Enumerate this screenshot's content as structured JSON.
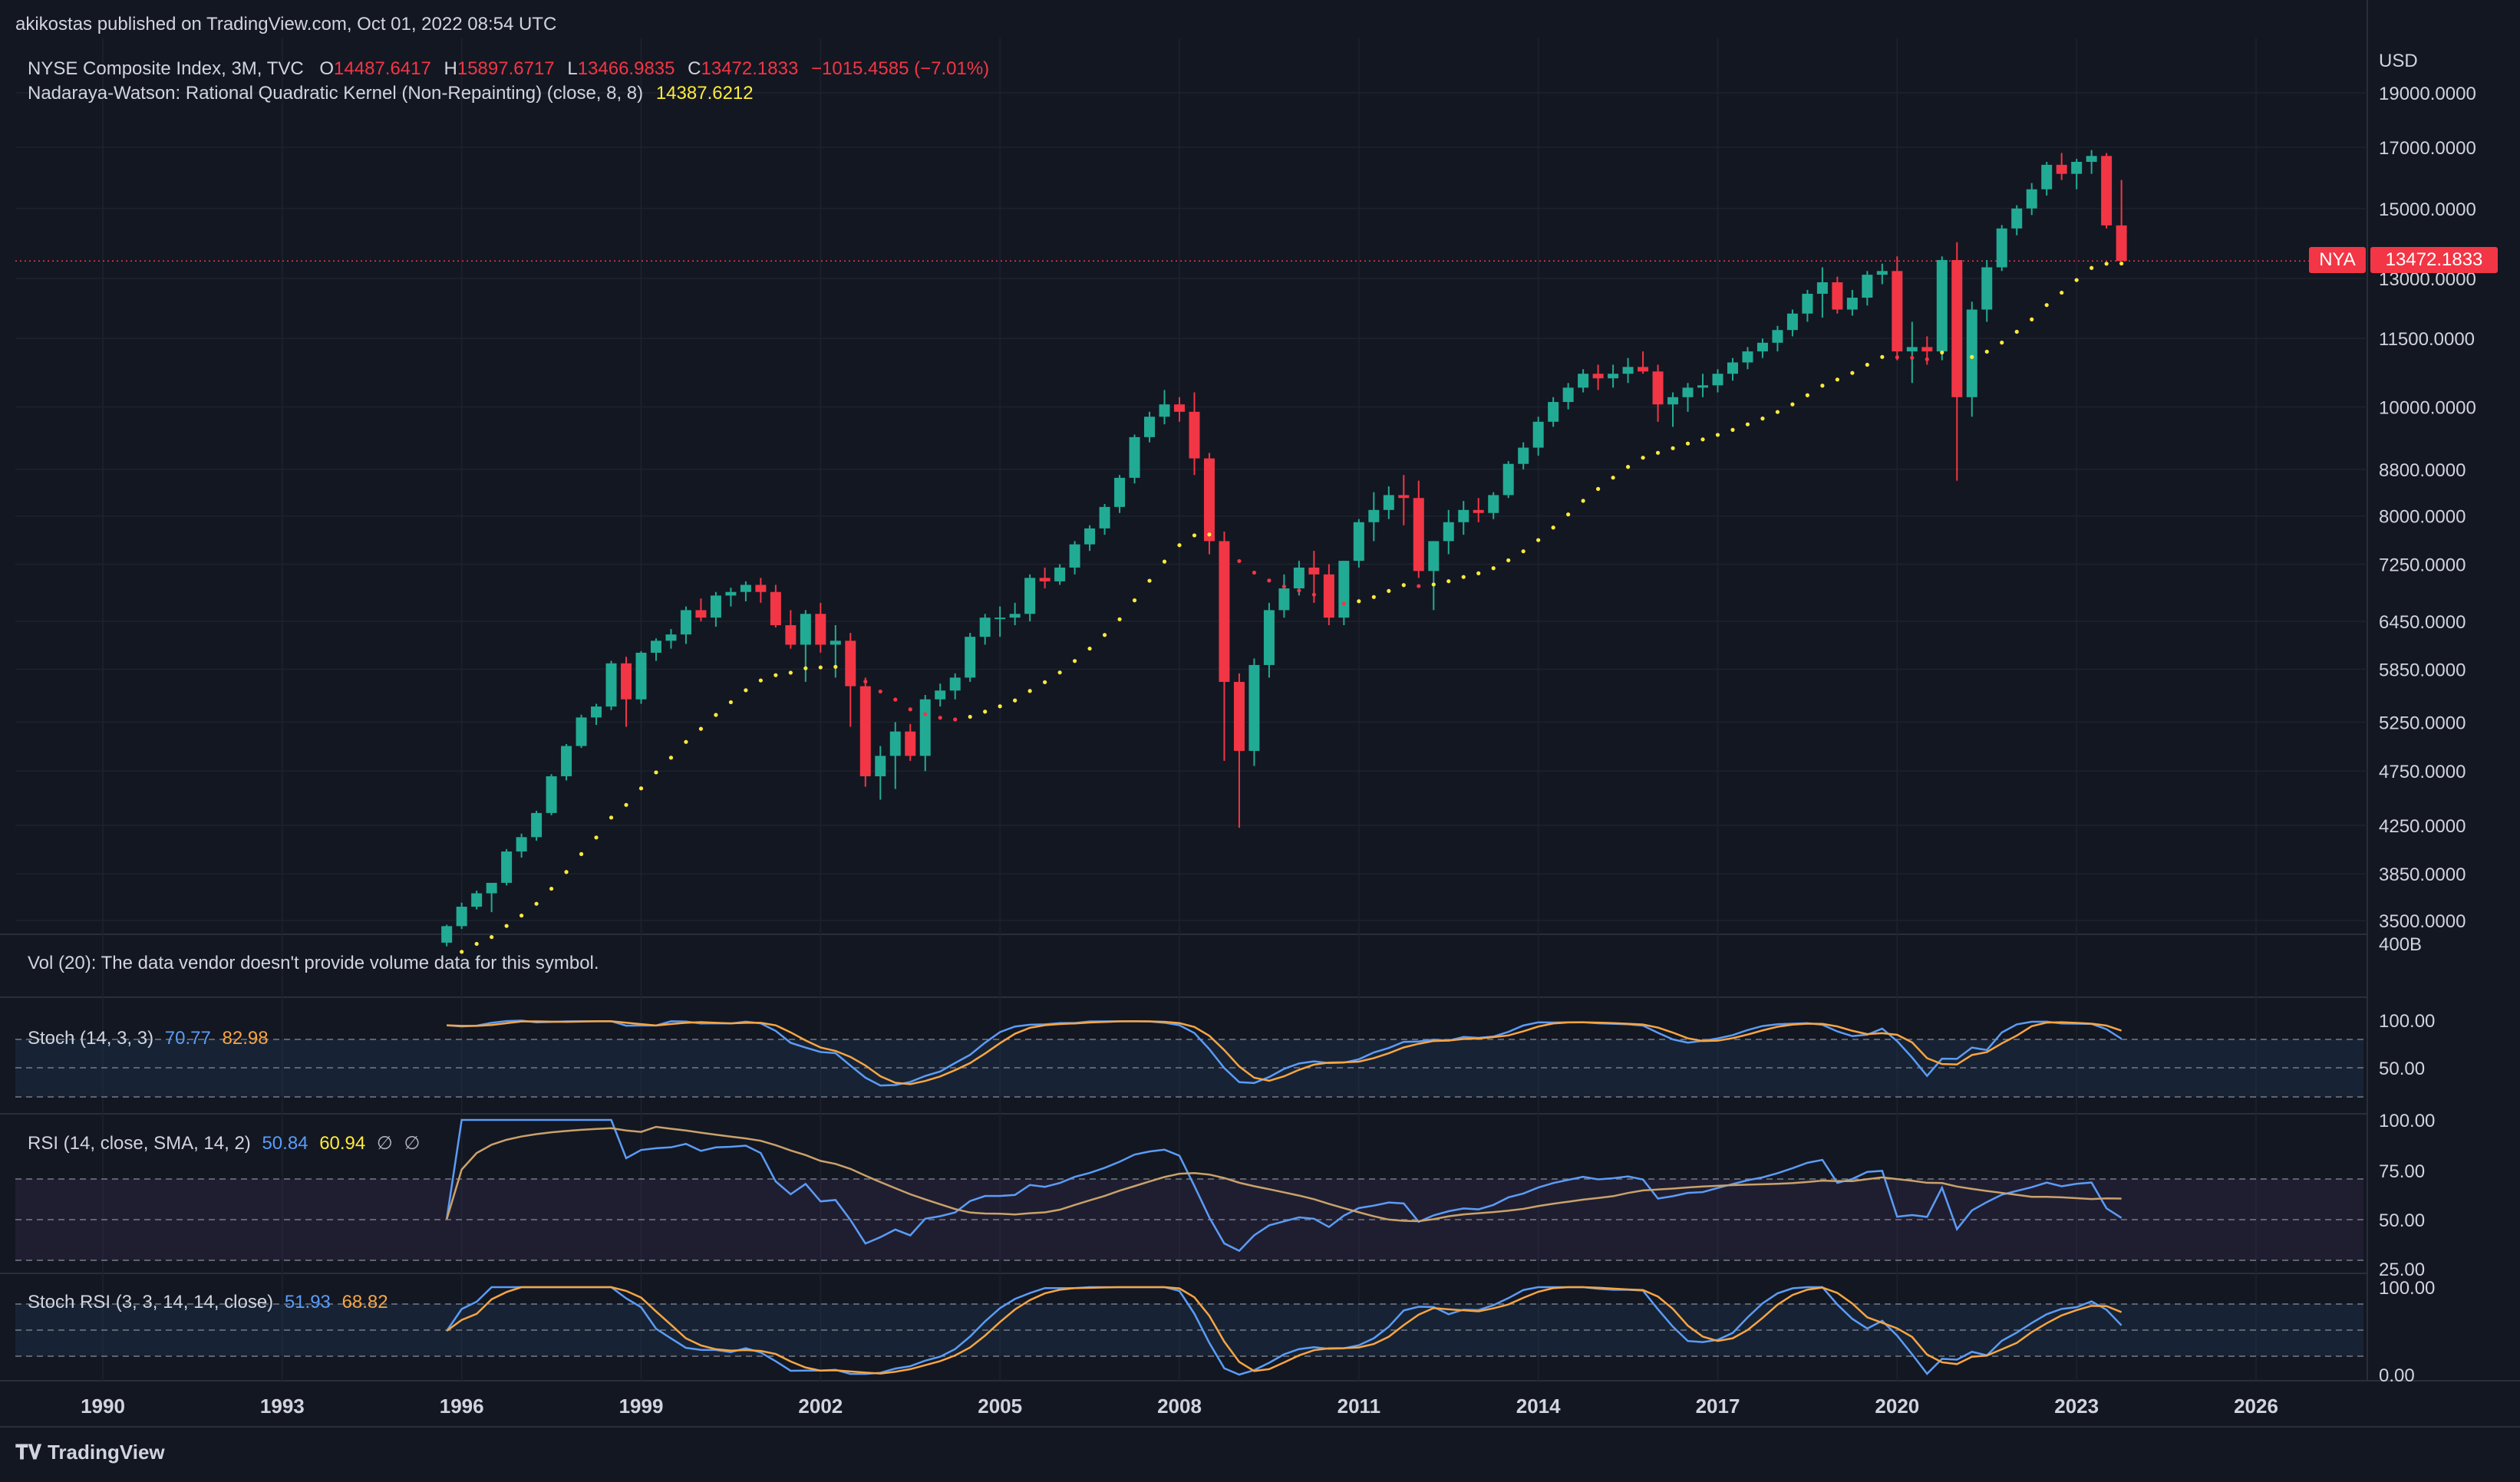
{
  "attribution": "akikostas published on TradingView.com, Oct 01, 2022 08:54 UTC",
  "currency": "USD",
  "symbol_line": {
    "name": "NYSE Composite Index, 3M, TVC",
    "o_label": "O",
    "o_value": "14487.6417",
    "h_label": "H",
    "h_value": "15897.6717",
    "l_label": "L",
    "l_value": "13466.9835",
    "c_label": "C",
    "c_value": "13472.1833",
    "change": "−1015.4585 (−7.01%)"
  },
  "nw_line": {
    "label": "Nadaraya-Watson: Rational Quadratic Kernel (Non-Repainting) (close, 8, 8)",
    "value": "14387.6212"
  },
  "last_price": {
    "symbol": "NYA",
    "value": "13472.1833"
  },
  "vol_line": "Vol (20): The data vendor doesn't provide volume data for this symbol.",
  "stoch_line": {
    "label": "Stoch (14, 3, 3)",
    "k": "70.77",
    "d": "82.98"
  },
  "rsi_line": {
    "label": "RSI (14, close, SMA, 14, 2)",
    "rsi": "50.84",
    "ma": "60.94",
    "na1": "∅",
    "na2": "∅"
  },
  "stochrsi_line": {
    "label": "Stoch RSI (3, 3, 14, 14, close)",
    "k": "51.93",
    "d": "68.82"
  },
  "footer": "TradingView",
  "colors": {
    "bg": "#131722",
    "up": "#22ab94",
    "down": "#f23645",
    "kernel": "#ffeb3b",
    "blue": "#5b9cf6",
    "orange": "#f7a543",
    "grid": "#1e222d"
  },
  "chart_data": {
    "type": "candlestick",
    "price_axis": {
      "labels": [
        "19000.0000",
        "17000.0000",
        "15000.0000",
        "13000.0000",
        "11500.0000",
        "10000.0000",
        "8800.0000",
        "8000.0000",
        "7250.0000",
        "6450.0000",
        "5850.0000",
        "5250.0000",
        "4750.0000",
        "4250.0000",
        "3850.0000",
        "3500.0000"
      ],
      "values": [
        19000,
        17000,
        15000,
        13000,
        11500,
        10000,
        8800,
        8000,
        7250,
        6450,
        5850,
        5250,
        4750,
        4250,
        3850,
        3500
      ],
      "scale": "log"
    },
    "vol_axis_label": "400B",
    "time_axis": [
      "1990",
      "1993",
      "1996",
      "1999",
      "2002",
      "2005",
      "2008",
      "2011",
      "2014",
      "2017",
      "2020",
      "2023",
      "2026"
    ],
    "stoch_axis": [
      "100.00",
      "50.00"
    ],
    "rsi_axis": [
      "100.00",
      "75.00",
      "50.00",
      "25.00"
    ],
    "stochrsi_axis": [
      "100.00",
      "0.00"
    ],
    "candles": [
      [
        1995.75,
        3345,
        3470,
        3320,
        3460
      ],
      [
        1996.0,
        3460,
        3630,
        3440,
        3600
      ],
      [
        1996.25,
        3600,
        3720,
        3580,
        3700
      ],
      [
        1996.5,
        3700,
        3760,
        3560,
        3780
      ],
      [
        1996.75,
        3780,
        4050,
        3760,
        4030
      ],
      [
        1997.0,
        4030,
        4180,
        3980,
        4150
      ],
      [
        1997.25,
        4150,
        4380,
        4120,
        4360
      ],
      [
        1997.5,
        4360,
        4720,
        4340,
        4700
      ],
      [
        1997.75,
        4700,
        5020,
        4660,
        5000
      ],
      [
        1998.0,
        5000,
        5330,
        4980,
        5300
      ],
      [
        1998.25,
        5300,
        5450,
        5220,
        5420
      ],
      [
        1998.5,
        5420,
        5950,
        5380,
        5920
      ],
      [
        1998.75,
        5920,
        6000,
        5200,
        5500
      ],
      [
        1999.0,
        5500,
        6070,
        5450,
        6050
      ],
      [
        1999.25,
        6050,
        6230,
        5950,
        6200
      ],
      [
        1999.5,
        6200,
        6350,
        6100,
        6280
      ],
      [
        1999.75,
        6280,
        6650,
        6160,
        6600
      ],
      [
        2000.0,
        6600,
        6760,
        6450,
        6500
      ],
      [
        2000.25,
        6500,
        6850,
        6380,
        6800
      ],
      [
        2000.5,
        6800,
        6910,
        6650,
        6850
      ],
      [
        2000.75,
        6850,
        7000,
        6720,
        6950
      ],
      [
        2001.0,
        6950,
        7050,
        6700,
        6850
      ],
      [
        2001.25,
        6850,
        6950,
        6370,
        6400
      ],
      [
        2001.5,
        6400,
        6600,
        6100,
        6150
      ],
      [
        2001.75,
        6150,
        6600,
        5700,
        6550
      ],
      [
        2002.0,
        6550,
        6700,
        6050,
        6150
      ],
      [
        2002.25,
        6150,
        6400,
        5750,
        6200
      ],
      [
        2002.5,
        6200,
        6300,
        5200,
        5650
      ],
      [
        2002.75,
        5650,
        5750,
        4600,
        4700
      ],
      [
        2003.0,
        4700,
        5000,
        4480,
        4900
      ],
      [
        2003.25,
        4900,
        5250,
        4580,
        5150
      ],
      [
        2003.5,
        5150,
        5230,
        4850,
        4900
      ],
      [
        2003.75,
        4900,
        5550,
        4750,
        5500
      ],
      [
        2004.0,
        5500,
        5680,
        5420,
        5600
      ],
      [
        2004.25,
        5600,
        5800,
        5500,
        5750
      ],
      [
        2004.5,
        5750,
        6300,
        5700,
        6250
      ],
      [
        2004.75,
        6250,
        6550,
        6150,
        6500
      ],
      [
        2005.0,
        6500,
        6650,
        6250,
        6500
      ],
      [
        2005.25,
        6500,
        6700,
        6400,
        6550
      ],
      [
        2005.5,
        6550,
        7100,
        6450,
        7050
      ],
      [
        2005.75,
        7050,
        7200,
        6900,
        7000
      ],
      [
        2006.0,
        7000,
        7250,
        6950,
        7200
      ],
      [
        2006.25,
        7200,
        7600,
        7100,
        7550
      ],
      [
        2006.5,
        7550,
        7850,
        7450,
        7800
      ],
      [
        2006.75,
        7800,
        8200,
        7700,
        8150
      ],
      [
        2007.0,
        8150,
        8700,
        8050,
        8650
      ],
      [
        2007.25,
        8650,
        9450,
        8550,
        9400
      ],
      [
        2007.5,
        9400,
        9900,
        9300,
        9800
      ],
      [
        2007.75,
        9800,
        10350,
        9650,
        10050
      ],
      [
        2008.0,
        10050,
        10200,
        9700,
        9900
      ],
      [
        2008.25,
        9900,
        10300,
        8700,
        9000
      ],
      [
        2008.5,
        9000,
        9100,
        7400,
        7600
      ],
      [
        2008.75,
        7600,
        7750,
        4850,
        5700
      ],
      [
        2009.0,
        5700,
        5800,
        4230,
        4950
      ],
      [
        2009.25,
        4950,
        5980,
        4800,
        5900
      ],
      [
        2009.5,
        5900,
        6700,
        5750,
        6600
      ],
      [
        2009.75,
        6600,
        7100,
        6500,
        6900
      ],
      [
        2010.0,
        6900,
        7300,
        6800,
        7200
      ],
      [
        2010.25,
        7200,
        7450,
        6700,
        7100
      ],
      [
        2010.5,
        7100,
        7250,
        6400,
        6500
      ],
      [
        2010.75,
        6500,
        7300,
        6400,
        7300
      ],
      [
        2011.0,
        7300,
        7950,
        7200,
        7900
      ],
      [
        2011.25,
        7900,
        8400,
        7600,
        8100
      ],
      [
        2011.5,
        8100,
        8500,
        7950,
        8350
      ],
      [
        2011.75,
        8350,
        8700,
        7850,
        8300
      ],
      [
        2012.0,
        8300,
        8600,
        7050,
        7150
      ],
      [
        2012.25,
        7150,
        7600,
        6600,
        7600
      ],
      [
        2012.5,
        7600,
        8100,
        7400,
        7900
      ],
      [
        2012.75,
        7900,
        8250,
        7700,
        8100
      ],
      [
        2013.0,
        8100,
        8300,
        7900,
        8050
      ],
      [
        2013.25,
        8050,
        8400,
        7950,
        8350
      ],
      [
        2013.5,
        8350,
        8950,
        8300,
        8900
      ],
      [
        2013.75,
        8900,
        9300,
        8800,
        9200
      ],
      [
        2014.0,
        9200,
        9800,
        9050,
        9700
      ],
      [
        2014.25,
        9700,
        10200,
        9600,
        10100
      ],
      [
        2014.5,
        10100,
        10500,
        9950,
        10400
      ],
      [
        2014.75,
        10400,
        10800,
        10300,
        10700
      ],
      [
        2015.0,
        10700,
        10900,
        10350,
        10600
      ],
      [
        2015.25,
        10600,
        10900,
        10400,
        10700
      ],
      [
        2015.5,
        10700,
        11050,
        10500,
        10850
      ],
      [
        2015.75,
        10850,
        11200,
        10700,
        10750
      ],
      [
        2016.0,
        10750,
        10900,
        9700,
        10050
      ],
      [
        2016.25,
        10050,
        10300,
        9600,
        10200
      ],
      [
        2016.5,
        10200,
        10500,
        9900,
        10400
      ],
      [
        2016.75,
        10400,
        10700,
        10200,
        10450
      ],
      [
        2017.0,
        10450,
        10800,
        10300,
        10700
      ],
      [
        2017.25,
        10700,
        11050,
        10550,
        10950
      ],
      [
        2017.5,
        10950,
        11300,
        10800,
        11200
      ],
      [
        2017.75,
        11200,
        11500,
        11050,
        11400
      ],
      [
        2018.0,
        11400,
        11800,
        11200,
        11700
      ],
      [
        2018.25,
        11700,
        12200,
        11550,
        12100
      ],
      [
        2018.5,
        12100,
        12700,
        11900,
        12600
      ],
      [
        2018.75,
        12600,
        13300,
        12000,
        12900
      ],
      [
        2019.0,
        12900,
        13050,
        12100,
        12200
      ],
      [
        2019.25,
        12200,
        12700,
        12050,
        12500
      ],
      [
        2019.5,
        12500,
        13200,
        12300,
        13100
      ],
      [
        2019.75,
        13100,
        13400,
        12850,
        13200
      ],
      [
        2020.0,
        13200,
        13600,
        11000,
        11200
      ],
      [
        2020.25,
        11200,
        11900,
        10500,
        11300
      ],
      [
        2020.5,
        11300,
        11550,
        10900,
        11200
      ],
      [
        2020.75,
        11200,
        13600,
        11000,
        13500
      ],
      [
        2021.0,
        13500,
        14000,
        8600,
        10200
      ],
      [
        2021.25,
        10200,
        12400,
        9800,
        12200
      ],
      [
        2021.5,
        12200,
        13500,
        11900,
        13300
      ],
      [
        2021.75,
        13300,
        14500,
        13200,
        14400
      ],
      [
        2022.0,
        14400,
        15100,
        14200,
        15000
      ],
      [
        2022.25,
        15000,
        15800,
        14800,
        15600
      ],
      [
        2022.5,
        15600,
        16500,
        15400,
        16400
      ],
      [
        2022.75,
        16400,
        16800,
        15900,
        16100
      ],
      [
        2023.0,
        16100,
        16600,
        15600,
        16500
      ],
      [
        2023.25,
        16500,
        16900,
        16100,
        16700
      ],
      [
        2023.5,
        16700,
        16800,
        14400,
        14490
      ],
      [
        2023.75,
        14490,
        15900,
        13470,
        13472
      ]
    ]
  }
}
